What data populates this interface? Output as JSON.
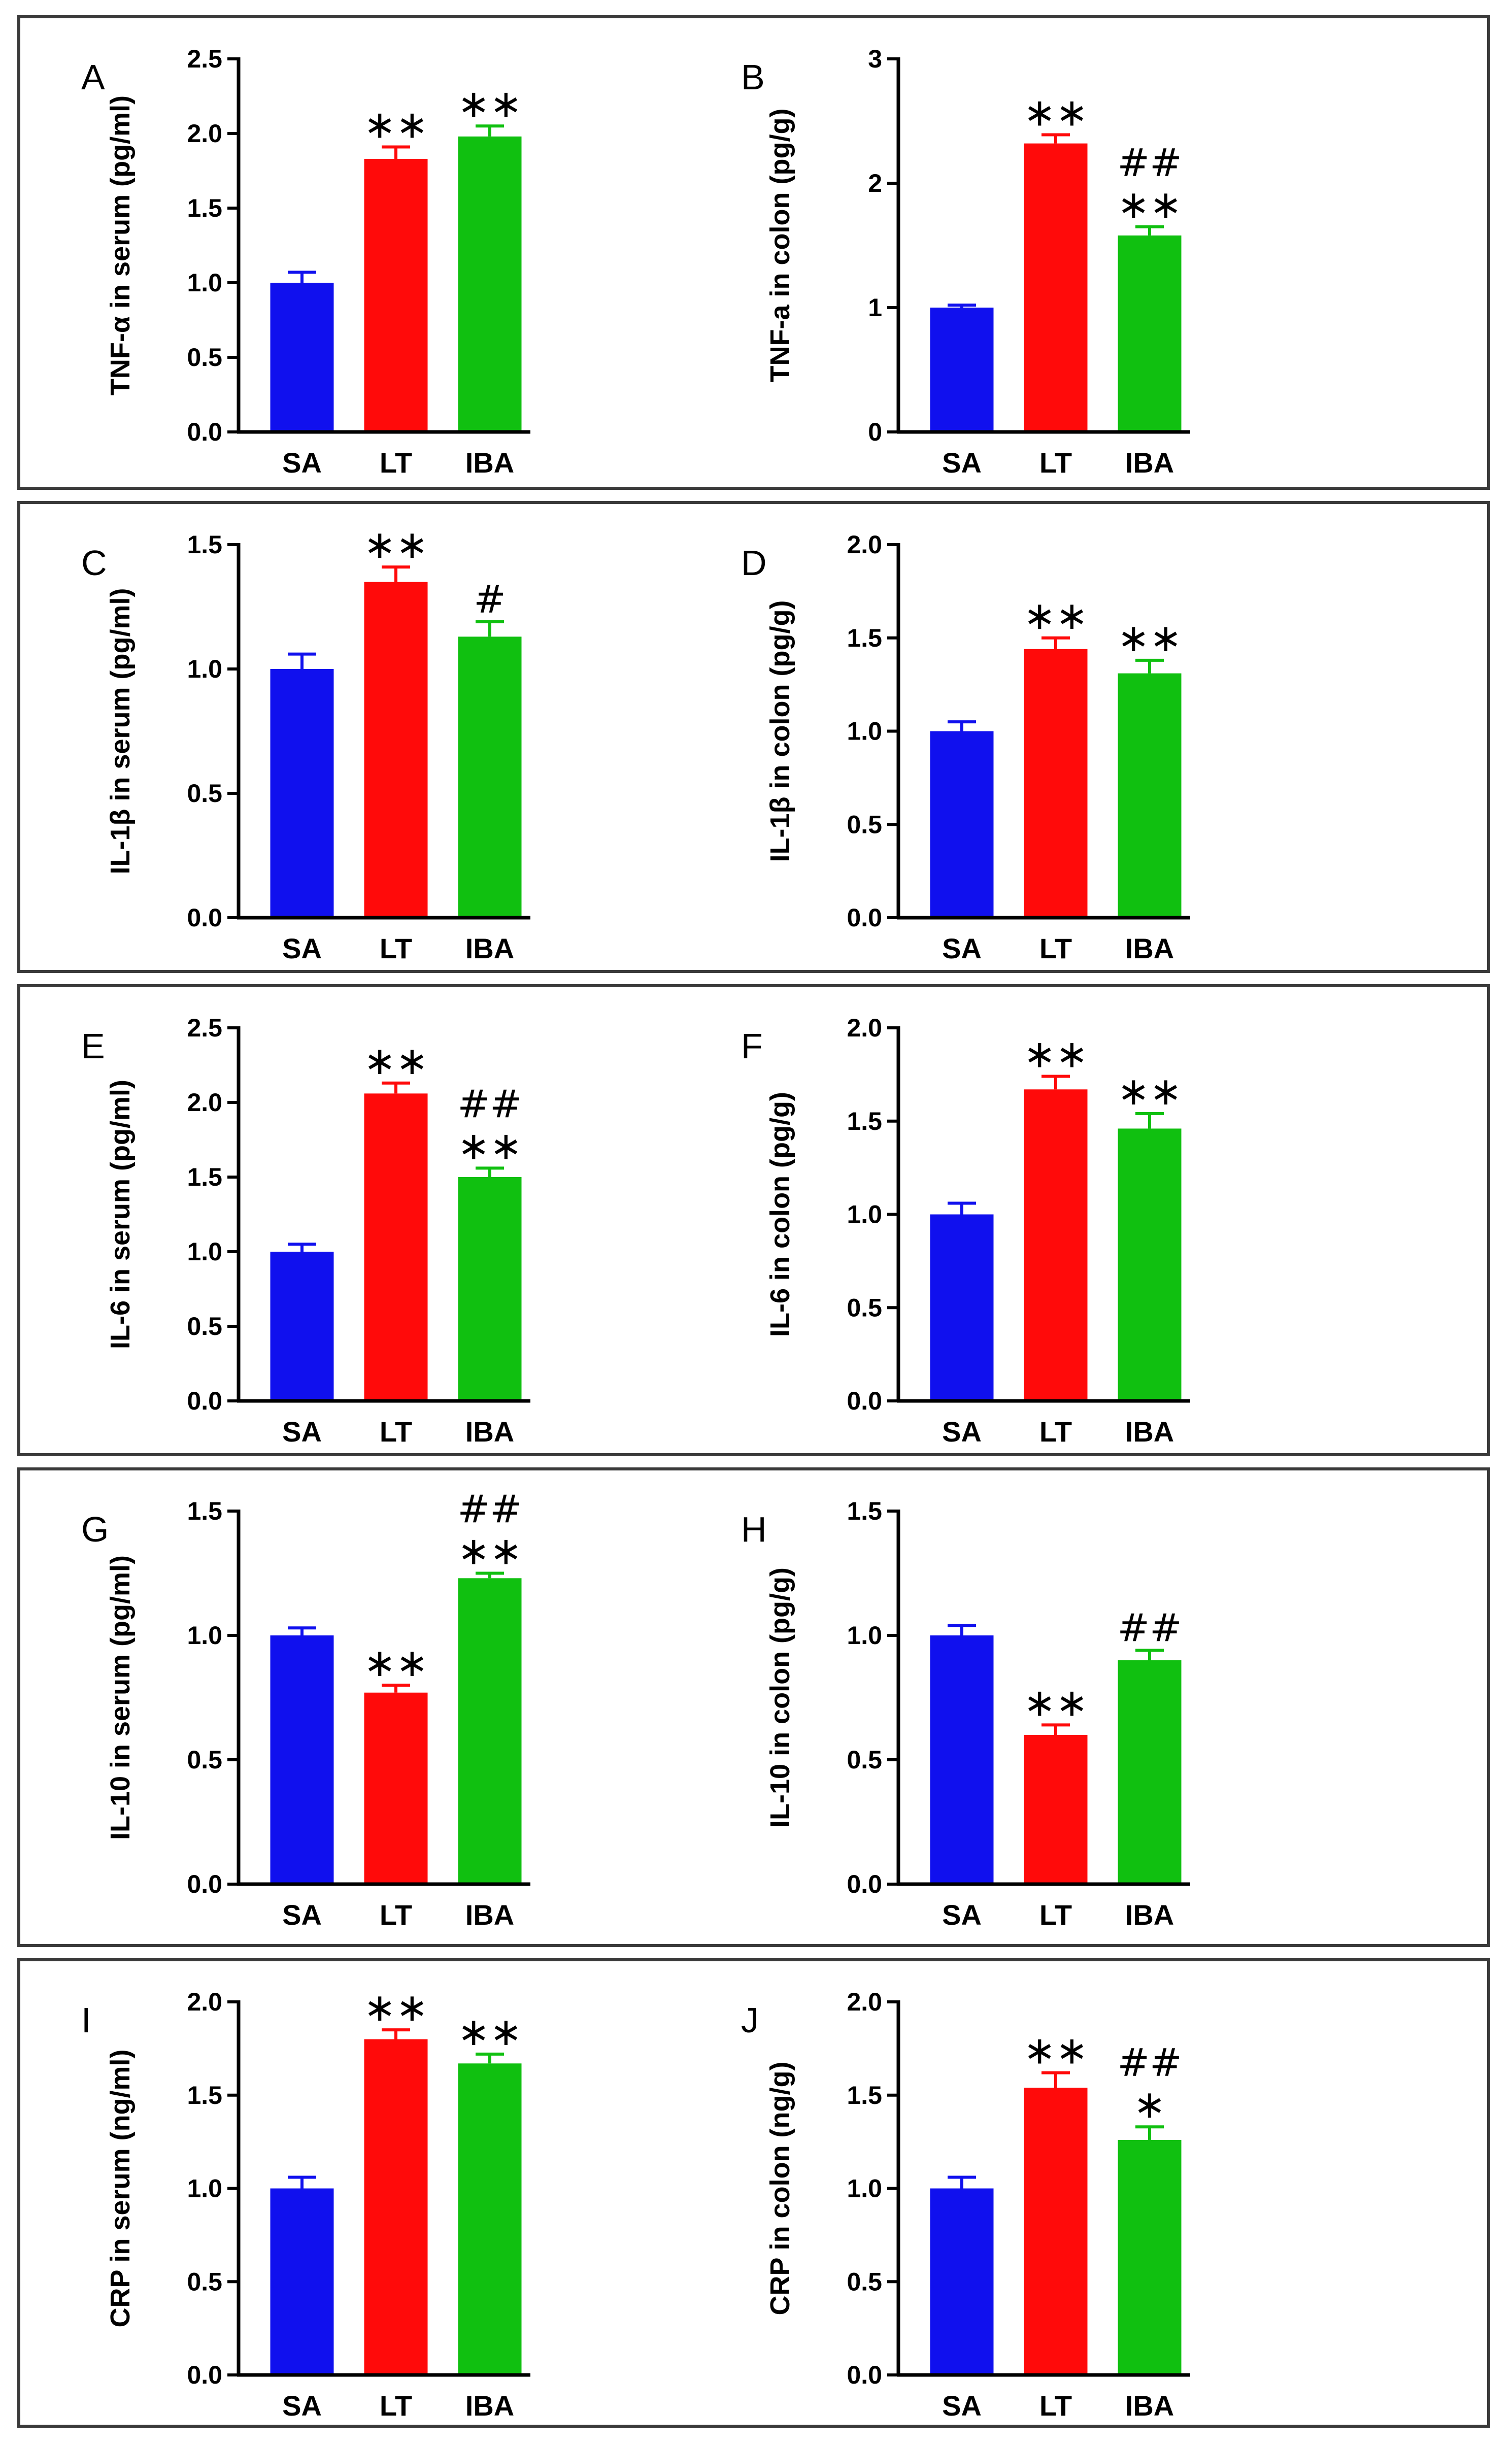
{
  "colors": {
    "SA": "#1010ee",
    "LT": "#ff0a0a",
    "IBA": "#10c010",
    "axis": "#000000",
    "frame": "#3a3a3a"
  },
  "chart_data": [
    {
      "type": "bar",
      "panel": "A",
      "title": "",
      "xlabel": "",
      "ylabel": "TNF-α in serum (pg/ml)",
      "categories": [
        "SA",
        "LT",
        "IBA"
      ],
      "values": [
        1.0,
        1.83,
        1.98
      ],
      "errors": [
        0.07,
        0.08,
        0.07
      ],
      "ylim": [
        0,
        2.5
      ],
      "yticks": [
        "0.0",
        "0.5",
        "1.0",
        "1.5",
        "2.0",
        "2.5"
      ],
      "annotations": [
        "",
        "∗∗",
        "∗∗"
      ],
      "annotations_top": [
        "",
        "",
        ""
      ]
    },
    {
      "type": "bar",
      "panel": "B",
      "title": "",
      "xlabel": "",
      "ylabel": "TNF-a in colon (pg/g)",
      "categories": [
        "SA",
        "LT",
        "IBA"
      ],
      "values": [
        1.0,
        2.32,
        1.58
      ],
      "errors": [
        0.02,
        0.07,
        0.07
      ],
      "ylim": [
        0,
        3
      ],
      "yticks": [
        "0",
        "1",
        "2",
        "3"
      ],
      "annotations": [
        "",
        "∗∗",
        "∗∗"
      ],
      "annotations_top": [
        "",
        "",
        "##"
      ]
    },
    {
      "type": "bar",
      "panel": "C",
      "title": "",
      "xlabel": "",
      "ylabel": "IL-1β in serum (pg/ml)",
      "categories": [
        "SA",
        "LT",
        "IBA"
      ],
      "values": [
        1.0,
        1.35,
        1.13
      ],
      "errors": [
        0.06,
        0.06,
        0.06
      ],
      "ylim": [
        0,
        1.5
      ],
      "yticks": [
        "0.0",
        "0.5",
        "1.0",
        "1.5"
      ],
      "annotations": [
        "",
        "∗∗",
        "#"
      ],
      "annotations_top": [
        "",
        "",
        ""
      ]
    },
    {
      "type": "bar",
      "panel": "D",
      "title": "",
      "xlabel": "",
      "ylabel": "IL-1β in colon (pg/g)",
      "categories": [
        "SA",
        "LT",
        "IBA"
      ],
      "values": [
        1.0,
        1.44,
        1.31
      ],
      "errors": [
        0.05,
        0.06,
        0.07
      ],
      "ylim": [
        0,
        2.0
      ],
      "yticks": [
        "0.0",
        "0.5",
        "1.0",
        "1.5",
        "2.0"
      ],
      "annotations": [
        "",
        "∗∗",
        "∗∗"
      ],
      "annotations_top": [
        "",
        "",
        ""
      ]
    },
    {
      "type": "bar",
      "panel": "E",
      "title": "",
      "xlabel": "",
      "ylabel": "IL-6 in serum (pg/ml)",
      "categories": [
        "SA",
        "LT",
        "IBA"
      ],
      "values": [
        1.0,
        2.06,
        1.5
      ],
      "errors": [
        0.05,
        0.07,
        0.06
      ],
      "ylim": [
        0,
        2.5
      ],
      "yticks": [
        "0.0",
        "0.5",
        "1.0",
        "1.5",
        "2.0",
        "2.5"
      ],
      "annotations": [
        "",
        "∗∗",
        "∗∗"
      ],
      "annotations_top": [
        "",
        "",
        "##"
      ]
    },
    {
      "type": "bar",
      "panel": "F",
      "title": "",
      "xlabel": "",
      "ylabel": "IL-6 in colon (pg/g)",
      "categories": [
        "SA",
        "LT",
        "IBA"
      ],
      "values": [
        1.0,
        1.67,
        1.46
      ],
      "errors": [
        0.06,
        0.07,
        0.08
      ],
      "ylim": [
        0,
        2.0
      ],
      "yticks": [
        "0.0",
        "0.5",
        "1.0",
        "1.5",
        "2.0"
      ],
      "annotations": [
        "",
        "∗∗",
        "∗∗"
      ],
      "annotations_top": [
        "",
        "",
        ""
      ]
    },
    {
      "type": "bar",
      "panel": "G",
      "title": "",
      "xlabel": "",
      "ylabel": "IL-10 in serum (pg/ml)",
      "categories": [
        "SA",
        "LT",
        "IBA"
      ],
      "values": [
        1.0,
        0.77,
        1.23
      ],
      "errors": [
        0.03,
        0.03,
        0.02
      ],
      "ylim": [
        0,
        1.5
      ],
      "yticks": [
        "0.0",
        "0.5",
        "1.0",
        "1.5"
      ],
      "annotations": [
        "",
        "∗∗",
        "∗∗"
      ],
      "annotations_top": [
        "",
        "",
        "##"
      ]
    },
    {
      "type": "bar",
      "panel": "H",
      "title": "",
      "xlabel": "",
      "ylabel": "IL-10 in colon (pg/g)",
      "categories": [
        "SA",
        "LT",
        "IBA"
      ],
      "values": [
        1.0,
        0.6,
        0.9
      ],
      "errors": [
        0.04,
        0.04,
        0.04
      ],
      "ylim": [
        0,
        1.5
      ],
      "yticks": [
        "0.0",
        "0.5",
        "1.0",
        "1.5"
      ],
      "annotations": [
        "",
        "∗∗",
        "##"
      ],
      "annotations_top": [
        "",
        "",
        ""
      ]
    },
    {
      "type": "bar",
      "panel": "I",
      "title": "",
      "xlabel": "",
      "ylabel": "CRP in serum (ng/ml)",
      "categories": [
        "SA",
        "LT",
        "IBA"
      ],
      "values": [
        1.0,
        1.8,
        1.67
      ],
      "errors": [
        0.06,
        0.05,
        0.05
      ],
      "ylim": [
        0,
        2.0
      ],
      "yticks": [
        "0.0",
        "0.5",
        "1.0",
        "1.5",
        "2.0"
      ],
      "annotations": [
        "",
        "∗∗",
        "∗∗"
      ],
      "annotations_top": [
        "",
        "",
        ""
      ]
    },
    {
      "type": "bar",
      "panel": "J",
      "title": "",
      "xlabel": "",
      "ylabel": "CRP in colon (ng/g)",
      "categories": [
        "SA",
        "LT",
        "IBA"
      ],
      "values": [
        1.0,
        1.54,
        1.26
      ],
      "errors": [
        0.06,
        0.08,
        0.07
      ],
      "ylim": [
        0,
        2.0
      ],
      "yticks": [
        "0.0",
        "0.5",
        "1.0",
        "1.5",
        "2.0"
      ],
      "annotations": [
        "",
        "∗∗",
        "∗"
      ],
      "annotations_top": [
        "",
        "",
        "##"
      ]
    }
  ]
}
